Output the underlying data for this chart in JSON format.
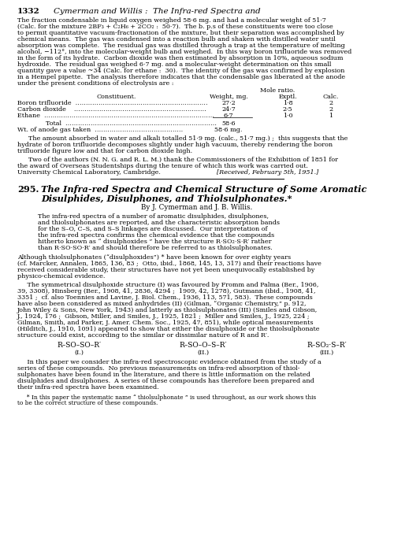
{
  "header_num": "1332",
  "header_title": "Cymerman and Willis :  The Infra-red Spectra and",
  "para1_lines": [
    "The fraction condensable in liquid oxygen weighed 58·6 mg. and had a molecular weight of 51·7",
    "(Calc. for the mixture 2BF₃ + C₂H₆ + 2CO₂ :  50·7).  The b. p.s of these constituents were too close",
    "to permit quantitative vacuum-fractionation of the mixture, but their separation was accomplished by",
    "chemical means.  The gas was condensed into a reaction bulb and shaken with distilled water until",
    "absorption was complete.  The residual gas was distilled through a trap at the temperature of melting",
    "alcohol, −112°, into the molecular-weight bulb and weighed.  In this way boron trifluoride was removed",
    "in the form of its hydrate.  Carbon dioxide was then estimated by absorption in 10%, aqueous sodium",
    "hydroxide.  The residual gas weighed 6·7 mg. and a molecular-weight determination on this small",
    "quantity gave a value ~34 (Calc. for ethane :  30).  The identity of the gas was confirmed by explosion",
    "in a Hempel pipette.  The analysis therefore indicates that the condensable gas liberated at the anode",
    "under the present conditions of electrolysis are :"
  ],
  "table_mole_label": "Mole ratio.",
  "table_col1": "Constituent.",
  "table_col2": "Weight, mg.",
  "table_col3": "Exptl.",
  "table_col4": "Calc.",
  "table_rows": [
    [
      "Boron trifluoride  ………………………………………………………",
      "27·2",
      "1·8",
      "2"
    ],
    [
      "Carbon dioxide    ………………………………………………………",
      "24·7",
      "2·5",
      "2"
    ],
    [
      "Ethane  ………………………………………………………………………",
      "6·7",
      "1·0",
      "1"
    ]
  ],
  "table_total_label": "Total  ………………………………………………………………",
  "table_total_val": "58·6",
  "table_anode_label": "Wt. of anode gas taken  ……………………………………",
  "table_anode_val": "58·6 mg.",
  "para2_lines": [
    "The amount absorbed in water and alkali totalled 51·9 mg. (calc., 51·7 mg.) ;  this suggests that the",
    "hydrate of boron trifluoride decomposes slightly under high vacuum, thereby rendering the boron",
    "trifluoride figure low and that for carbon dioxide high."
  ],
  "para3_lines": [
    "Two of the authors (N. N. G. and R. L. M.) thank the Commissioners of the Exhibition of 1851 for",
    "the award of Overseas Studentships during the tenure of which this work was carried out."
  ],
  "institution": "University Chemical Laboratory, Cambridge.",
  "received": "[Received, February 5th, 1951.]",
  "article_num": "295.",
  "article_title_line1": "The Infra-red Spectra and Chemical Structure of Some Aromatic",
  "article_title_line2": "Disulphides, Disulphones, and Thiolsulphonates.*",
  "article_authors": "By J. Cymerman and J. B. Willis.",
  "abstract_lines": [
    "The infra-red spectra of a number of aromatic disulphides, disulphones,",
    "and thiolsulphonates are reported, and the characteristic absorption bands",
    "for the S–O, C–S, and S–S linkages are discussed.  Our interpretation of",
    "the infra-red spectra confirms the chemical evidence that the compounds",
    "hitherto known as “ disulphoxides ” have the structure R·SO₂·S·R′ rather",
    "than R·SO·SO·R′ and should therefore be referred to as thiolsulphonates."
  ],
  "although_lines": [
    "Although thiolsulphonates (“disulphoxides”) * have been known for over eighty years",
    "(cf. Marcker, Annalen, 1865, 136, 83 ;  Otto, ibid., 1868, 145, 13, 317) and their reactions have",
    "received considerable study, their structures have not yet been unequivocally established by",
    "physico-chemical evidence."
  ],
  "body1_lines": [
    "     The symmetrical disulphoxide structure (I) was favoured by Fromm and Palma (Ber., 1906,",
    "39, 3308), Hinsberg (Ber., 1908, 41, 2836, 4294 ;  1909, 42, 1278), Gutmann (ibid., 1908, 41,",
    "3351 ;  cf. also Toennies and Lavine, J. Biol. Chem., 1936, 113, 571, 583).  These compounds",
    "have also been considered as mixed anhydrides (II) (Gilman, “Organic Chemistry,” p. 912,",
    "John Wiley & Sons, New York, 1943) and latterly as thiolsulphonates (III) (Smiles and Gibson,",
    "J., 1924, 176 ;  Gibson, Miller, and Smiles, J., 1925, 1821 ;  Miller and Smiles, J., 1925, 224 ;",
    "Gilman, Smith, and Parker, J. Amer. Chem. Soc., 1925, 47, 851), while optical measurements",
    "(Hilditch, J., 1910, 1091) appeared to show that either the disulphoxide or the thiolsulphonate",
    "structure could exist, according to the similar or dissimilar nature of R and R′."
  ],
  "structure_I_text": "R–SO–SO–R′",
  "structure_I_label": "(I.)",
  "structure_II_text": "R–SO–O–S–R′",
  "structure_II_label": "(II.)",
  "structure_III_text": "R–SO₂·S–R′",
  "structure_III_label": "(III.)",
  "body2_lines": [
    "     In this paper we consider the infra-red spectroscopic evidence obtained from the study of a",
    "series of these compounds.  No previous measurements on infra-red absorption of thiol-",
    "sulphonates have been found in the literature, and there is little information on the related",
    "disulphides and disulphones.  A series of these compounds has therefore been prepared and",
    "their infra-red spectra have been examined."
  ],
  "footnote_lines": [
    "     * In this paper the systematic name “ thiolsulphonate ” is used throughout, as our work shows this",
    "to be the correct structure of these compounds."
  ],
  "bg_color": "#ffffff"
}
